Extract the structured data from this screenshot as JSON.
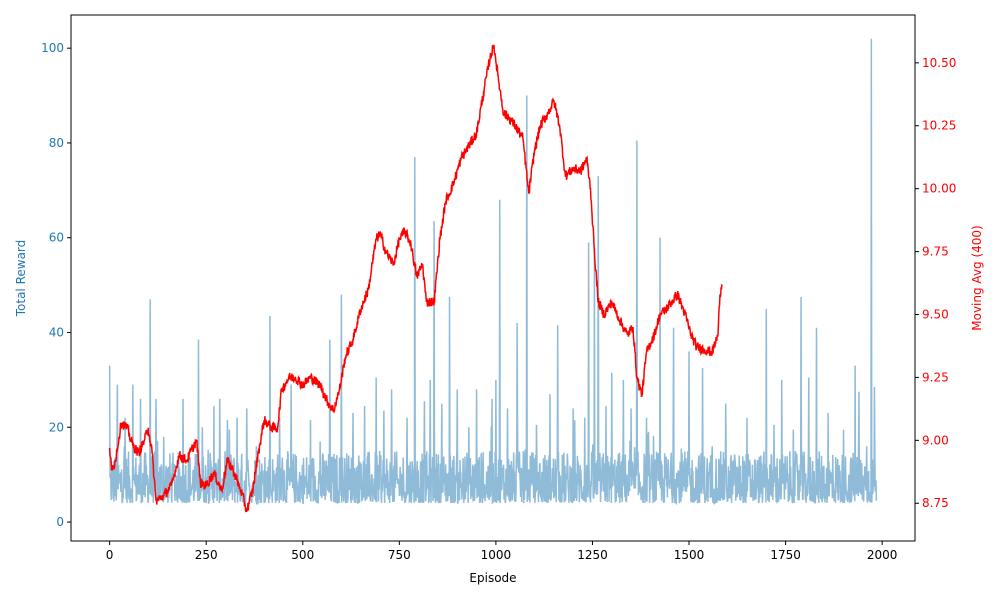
{
  "chart_data": {
    "type": "line",
    "xlabel": "Episode",
    "ylabel_left": "Total Reward",
    "ylabel_right": "Moving Avg (400)",
    "xlim": [
      -100,
      2085
    ],
    "ylim_left": [
      -4,
      107
    ],
    "ylim_right": [
      8.6,
      10.69
    ],
    "x_ticks": [
      0,
      250,
      500,
      750,
      1000,
      1250,
      1500,
      1750,
      2000
    ],
    "y_left_ticks": [
      0,
      20,
      40,
      60,
      80,
      100
    ],
    "y_right_ticks": [
      8.75,
      9.0,
      9.25,
      9.5,
      9.75,
      10.0,
      10.25,
      10.5
    ],
    "colors": {
      "reward": "#1f77b4",
      "reward_alpha": 0.5,
      "moving_avg": "#ff0000",
      "left_axis_text": "#1f77b4",
      "right_axis_text": "#ff0000"
    },
    "grid": false,
    "series": [
      {
        "axis": "left",
        "episodes": [
          0,
          1985
        ],
        "baseline_range": [
          3,
          14
        ],
        "spikes": [
          [
            0,
            33
          ],
          [
            20,
            29
          ],
          [
            40,
            22
          ],
          [
            60,
            29
          ],
          [
            80,
            26
          ],
          [
            105,
            47
          ],
          [
            120,
            26
          ],
          [
            140,
            18
          ],
          [
            190,
            26
          ],
          [
            230,
            38.5
          ],
          [
            240,
            20
          ],
          [
            270,
            24.5
          ],
          [
            285,
            26
          ],
          [
            310,
            19.5
          ],
          [
            330,
            22
          ],
          [
            355,
            24
          ],
          [
            380,
            16
          ],
          [
            415,
            43.5
          ],
          [
            440,
            22
          ],
          [
            470,
            29
          ],
          [
            520,
            21.5
          ],
          [
            545,
            17
          ],
          [
            570,
            38.5
          ],
          [
            600,
            48
          ],
          [
            630,
            23
          ],
          [
            660,
            24.5
          ],
          [
            690,
            30.5
          ],
          [
            710,
            23.5
          ],
          [
            730,
            28
          ],
          [
            770,
            22
          ],
          [
            790,
            77
          ],
          [
            815,
            25.5
          ],
          [
            830,
            30
          ],
          [
            840,
            63.5
          ],
          [
            860,
            25
          ],
          [
            880,
            47.5
          ],
          [
            900,
            28
          ],
          [
            930,
            20
          ],
          [
            950,
            28
          ],
          [
            990,
            26
          ],
          [
            1000,
            30
          ],
          [
            1010,
            68
          ],
          [
            1030,
            24
          ],
          [
            1055,
            42
          ],
          [
            1080,
            90
          ],
          [
            1105,
            20.5
          ],
          [
            1140,
            27
          ],
          [
            1160,
            41.5
          ],
          [
            1200,
            24
          ],
          [
            1230,
            22
          ],
          [
            1240,
            59
          ],
          [
            1255,
            58
          ],
          [
            1265,
            73
          ],
          [
            1285,
            24.5
          ],
          [
            1300,
            31.5
          ],
          [
            1330,
            30
          ],
          [
            1350,
            24
          ],
          [
            1365,
            80.5
          ],
          [
            1390,
            22
          ],
          [
            1425,
            60
          ],
          [
            1460,
            41
          ],
          [
            1480,
            15.5
          ],
          [
            1500,
            36
          ],
          [
            1535,
            32.5
          ],
          [
            1560,
            16
          ],
          [
            1595,
            25
          ],
          [
            1620,
            12
          ],
          [
            1650,
            22
          ],
          [
            1700,
            45
          ],
          [
            1720,
            20.5
          ],
          [
            1740,
            30
          ],
          [
            1770,
            19.5
          ],
          [
            1790,
            47.5
          ],
          [
            1810,
            30.5
          ],
          [
            1830,
            41
          ],
          [
            1860,
            23
          ],
          [
            1900,
            19.5
          ],
          [
            1930,
            33
          ],
          [
            1940,
            27.5
          ],
          [
            1960,
            16
          ],
          [
            1972,
            102
          ],
          [
            1980,
            28.5
          ]
        ]
      },
      {
        "axis": "right",
        "name": "Moving Avg (400)",
        "points": [
          [
            0,
            8.97
          ],
          [
            5,
            8.88
          ],
          [
            15,
            8.92
          ],
          [
            30,
            9.07
          ],
          [
            45,
            9.05
          ],
          [
            60,
            8.98
          ],
          [
            75,
            8.95
          ],
          [
            90,
            9.0
          ],
          [
            100,
            9.05
          ],
          [
            110,
            8.95
          ],
          [
            120,
            8.76
          ],
          [
            140,
            8.78
          ],
          [
            160,
            8.82
          ],
          [
            180,
            8.94
          ],
          [
            200,
            8.92
          ],
          [
            215,
            8.97
          ],
          [
            225,
            9.0
          ],
          [
            235,
            8.83
          ],
          [
            250,
            8.82
          ],
          [
            270,
            8.87
          ],
          [
            290,
            8.8
          ],
          [
            305,
            8.92
          ],
          [
            320,
            8.88
          ],
          [
            340,
            8.8
          ],
          [
            355,
            8.72
          ],
          [
            370,
            8.8
          ],
          [
            385,
            8.95
          ],
          [
            400,
            9.08
          ],
          [
            420,
            9.05
          ],
          [
            435,
            9.05
          ],
          [
            445,
            9.2
          ],
          [
            465,
            9.25
          ],
          [
            480,
            9.25
          ],
          [
            500,
            9.22
          ],
          [
            520,
            9.25
          ],
          [
            545,
            9.22
          ],
          [
            565,
            9.15
          ],
          [
            580,
            9.12
          ],
          [
            595,
            9.2
          ],
          [
            610,
            9.33
          ],
          [
            630,
            9.4
          ],
          [
            650,
            9.52
          ],
          [
            670,
            9.6
          ],
          [
            690,
            9.8
          ],
          [
            700,
            9.82
          ],
          [
            715,
            9.75
          ],
          [
            735,
            9.7
          ],
          [
            750,
            9.8
          ],
          [
            765,
            9.83
          ],
          [
            780,
            9.78
          ],
          [
            795,
            9.65
          ],
          [
            810,
            9.7
          ],
          [
            820,
            9.55
          ],
          [
            840,
            9.55
          ],
          [
            855,
            9.8
          ],
          [
            870,
            9.95
          ],
          [
            890,
            10.02
          ],
          [
            910,
            10.12
          ],
          [
            930,
            10.17
          ],
          [
            950,
            10.22
          ],
          [
            970,
            10.4
          ],
          [
            985,
            10.52
          ],
          [
            995,
            10.57
          ],
          [
            1005,
            10.45
          ],
          [
            1020,
            10.3
          ],
          [
            1035,
            10.28
          ],
          [
            1050,
            10.25
          ],
          [
            1070,
            10.2
          ],
          [
            1085,
            9.98
          ],
          [
            1100,
            10.15
          ],
          [
            1115,
            10.25
          ],
          [
            1135,
            10.3
          ],
          [
            1150,
            10.35
          ],
          [
            1165,
            10.25
          ],
          [
            1180,
            10.05
          ],
          [
            1200,
            10.08
          ],
          [
            1220,
            10.07
          ],
          [
            1235,
            10.12
          ],
          [
            1245,
            10.0
          ],
          [
            1255,
            9.75
          ],
          [
            1265,
            9.55
          ],
          [
            1280,
            9.5
          ],
          [
            1300,
            9.55
          ],
          [
            1320,
            9.48
          ],
          [
            1340,
            9.42
          ],
          [
            1355,
            9.45
          ],
          [
            1365,
            9.25
          ],
          [
            1378,
            9.18
          ],
          [
            1390,
            9.35
          ],
          [
            1410,
            9.42
          ],
          [
            1425,
            9.5
          ],
          [
            1440,
            9.52
          ],
          [
            1455,
            9.55
          ],
          [
            1470,
            9.58
          ],
          [
            1490,
            9.5
          ],
          [
            1505,
            9.42
          ],
          [
            1520,
            9.37
          ],
          [
            1540,
            9.36
          ],
          [
            1560,
            9.35
          ],
          [
            1575,
            9.42
          ],
          [
            1580,
            9.58
          ],
          [
            1585,
            9.62
          ]
        ]
      }
    ]
  }
}
